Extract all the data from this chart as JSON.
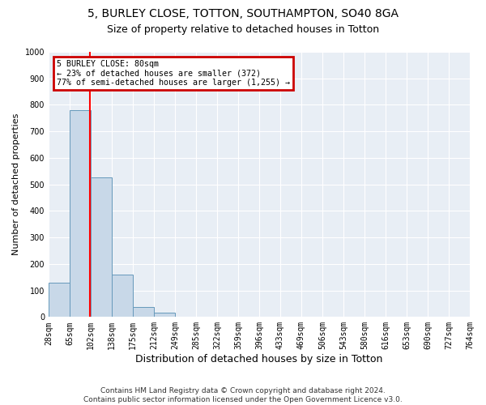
{
  "title_line1": "5, BURLEY CLOSE, TOTTON, SOUTHAMPTON, SO40 8GA",
  "title_line2": "Size of property relative to detached houses in Totton",
  "xlabel": "Distribution of detached houses by size in Totton",
  "ylabel": "Number of detached properties",
  "footnote": "Contains HM Land Registry data © Crown copyright and database right 2024.\nContains public sector information licensed under the Open Government Licence v3.0.",
  "bin_labels": [
    "28sqm",
    "65sqm",
    "102sqm",
    "138sqm",
    "175sqm",
    "212sqm",
    "249sqm",
    "285sqm",
    "322sqm",
    "359sqm",
    "396sqm",
    "433sqm",
    "469sqm",
    "506sqm",
    "543sqm",
    "580sqm",
    "616sqm",
    "653sqm",
    "690sqm",
    "727sqm",
    "764sqm"
  ],
  "bar_values": [
    130,
    780,
    525,
    160,
    38,
    15,
    0,
    0,
    0,
    0,
    0,
    0,
    0,
    0,
    0,
    0,
    0,
    0,
    0,
    0
  ],
  "bar_color": "#c8d8e8",
  "bar_edge_color": "#6699bb",
  "red_line_x": 1.97,
  "annotation_title": "5 BURLEY CLOSE: 80sqm",
  "annotation_line1": "← 23% of detached houses are smaller (372)",
  "annotation_line2": "77% of semi-detached houses are larger (1,255) →",
  "annotation_box_color": "#cc0000",
  "ylim": [
    0,
    1000
  ],
  "yticks": [
    0,
    100,
    200,
    300,
    400,
    500,
    600,
    700,
    800,
    900,
    1000
  ],
  "bg_color": "#ffffff",
  "plot_bg_color": "#e8eef5",
  "grid_color": "#ffffff",
  "title1_fontsize": 10,
  "title2_fontsize": 9,
  "xlabel_fontsize": 9,
  "ylabel_fontsize": 8,
  "tick_fontsize": 7,
  "footnote_fontsize": 6.5
}
